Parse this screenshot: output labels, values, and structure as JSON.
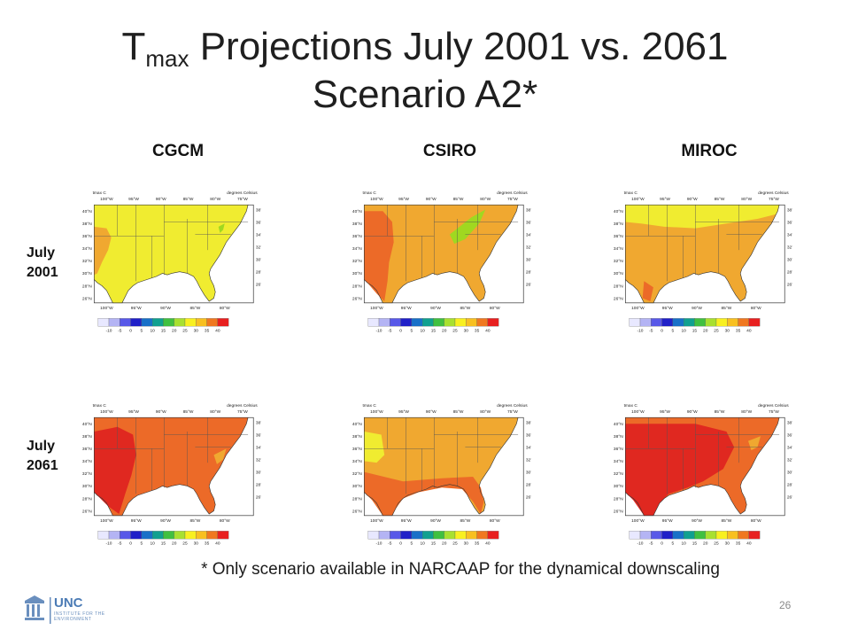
{
  "title": {
    "prefix": "T",
    "subscript": "max",
    "line1_rest": " Projections July 2001 vs. 2061",
    "line2": "Scenario A2*"
  },
  "columns": [
    "CGCM",
    "CSIRO",
    "MIROC"
  ],
  "rows": [
    {
      "line1": "July",
      "line2": "2001"
    },
    {
      "line1": "July",
      "line2": "2061"
    }
  ],
  "map": {
    "corner_left": "tmax C",
    "corner_right": "degrees Celsius",
    "lat_labels": [
      "40°N",
      "38°N",
      "36°N",
      "34°N",
      "32°N",
      "30°N",
      "28°N",
      "26°N"
    ],
    "lat_labels_right": [
      "38°N",
      "36°N",
      "34°N",
      "32°N",
      "30°N",
      "28°N",
      "26°N"
    ],
    "lon_labels": [
      "100°W",
      "95°W",
      "90°W",
      "85°W",
      "80°W"
    ],
    "lon_labels_top": [
      "100°W",
      "95°W",
      "90°W",
      "85°W",
      "80°W",
      "75°W"
    ],
    "colorbar_ticks": [
      "-10",
      "-5",
      "0",
      "5",
      "10",
      "15",
      "20",
      "25",
      "30",
      "35",
      "40"
    ],
    "colorbar_colors": [
      "#e8e8ff",
      "#b4b4f4",
      "#5858e8",
      "#2020c8",
      "#1870c8",
      "#10a090",
      "#40c040",
      "#a8e030",
      "#f8f020",
      "#f8c020",
      "#f07820",
      "#e82020"
    ]
  },
  "panels": [
    {
      "row": 0,
      "col": 0,
      "base": "#f0ec30",
      "zones": [
        "#f0a830",
        "#a0d820"
      ]
    },
    {
      "row": 0,
      "col": 1,
      "base": "#f0a830",
      "zones": [
        "#ec6a28",
        "#a0d820"
      ]
    },
    {
      "row": 0,
      "col": 2,
      "base": "#f0a830",
      "zones": [
        "#f0ec30",
        "#ec6a28"
      ]
    },
    {
      "row": 1,
      "col": 0,
      "base": "#ec6a28",
      "zones": [
        "#e02820",
        "#f0a830"
      ]
    },
    {
      "row": 1,
      "col": 1,
      "base": "#f0a830",
      "zones": [
        "#ec6a28",
        "#f0ec30"
      ]
    },
    {
      "row": 1,
      "col": 2,
      "base": "#ec6a28",
      "zones": [
        "#e02820",
        "#f0a830"
      ]
    }
  ],
  "footnote": "* Only scenario available in NARCAAP for the dynamical downscaling",
  "slide_number": "26",
  "logo": {
    "name": "UNC",
    "subtitle": "INSTITUTE FOR THE ENVIRONMENT"
  }
}
